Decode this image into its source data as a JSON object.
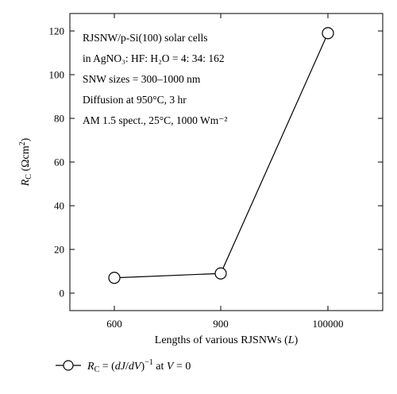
{
  "chart_data": {
    "type": "line",
    "categories": [
      "600",
      "900",
      "100000"
    ],
    "series": [
      {
        "name": "R_C = (dJ/dV)^-1 at V = 0",
        "values": [
          7,
          9,
          119
        ]
      }
    ],
    "ylim": [
      -8,
      128
    ],
    "yticks": [
      0,
      20,
      40,
      60,
      80,
      100,
      120
    ],
    "ytick_labels": [
      "0",
      "20",
      "40",
      "60",
      "80",
      "100",
      "120"
    ],
    "xlabel": "Lengths of various RJSNWs (L)",
    "ylabel": "R_C (Ωcm²)",
    "annotation_lines": [
      "RJSNW/p-Si(100) solar cells",
      "in AgNO₃: HF: H₂O = 4: 34: 162",
      "SNW sizes = 300–1000 nm",
      "Diffusion at 950°C, 3 hr",
      "AM 1.5 spect., 25°C, 1000 Wm⁻²"
    ],
    "legend": {
      "position": "below-left",
      "marker": "open-circle",
      "label": "R_C = (dJ/dV)^-1 at V = 0"
    },
    "grid": false
  }
}
